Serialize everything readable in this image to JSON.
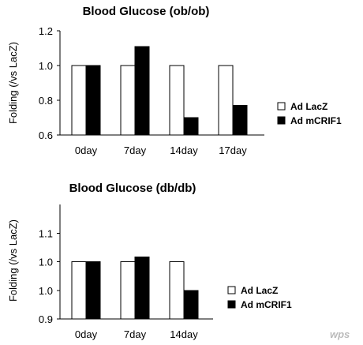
{
  "colors": {
    "lacz": "#ffffff",
    "mcrif1": "#000000",
    "axis": "#000000"
  },
  "watermark": "wps",
  "chart_data": [
    {
      "type": "bar",
      "title": "Blood Glucose (ob/ob)",
      "ylabel": "Folding (/vs LacZ)",
      "xlabel": "",
      "categories": [
        "0day",
        "7day",
        "14day",
        "17day"
      ],
      "ylim": [
        0.6,
        1.2
      ],
      "yticks": [
        "0.6",
        "0.8",
        "1.0",
        "1.2"
      ],
      "ytick_values": [
        0.6,
        0.8,
        1.0,
        1.2
      ],
      "series": [
        {
          "name": "Ad LacZ",
          "color": "#ffffff",
          "values": [
            1.0,
            1.0,
            1.0,
            1.0
          ]
        },
        {
          "name": "Ad mCRIF1",
          "color": "#000000",
          "values": [
            1.0,
            1.11,
            0.7,
            0.77
          ]
        }
      ],
      "legend": "right",
      "grid": false
    },
    {
      "type": "bar",
      "title": "Blood Glucose (db/db)",
      "ylabel": "Folding (/vs LacZ)",
      "xlabel": "",
      "categories": [
        "0day",
        "7day",
        "14day"
      ],
      "ylim": [
        0.9,
        1.1
      ],
      "yticks": [
        "0.9",
        "1.0",
        "1.0",
        "1.1"
      ],
      "ytick_values": [
        0.9,
        0.95,
        1.0,
        1.05
      ],
      "series": [
        {
          "name": "Ad LacZ",
          "color": "#ffffff",
          "values": [
            1.0,
            1.0,
            1.0
          ]
        },
        {
          "name": "Ad mCRIF1",
          "color": "#000000",
          "values": [
            1.0,
            1.008,
            0.95
          ]
        }
      ],
      "legend": "right",
      "grid": false
    }
  ]
}
